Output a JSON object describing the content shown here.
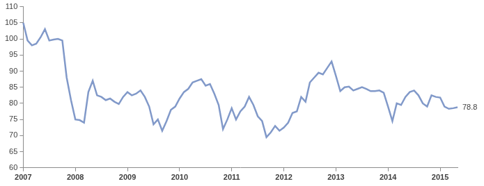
{
  "chart_data": {
    "type": "line",
    "categories": [
      "2007",
      null,
      null,
      null,
      null,
      null,
      null,
      null,
      null,
      null,
      null,
      null,
      "2008",
      null,
      null,
      null,
      null,
      null,
      null,
      null,
      null,
      null,
      null,
      null,
      "2009",
      null,
      null,
      null,
      null,
      null,
      null,
      null,
      null,
      null,
      null,
      null,
      "2010",
      null,
      null,
      null,
      null,
      null,
      null,
      null,
      null,
      null,
      null,
      null,
      "2011",
      null,
      null,
      null,
      null,
      null,
      null,
      null,
      null,
      null,
      null,
      null,
      "2012",
      null,
      null,
      null,
      null,
      null,
      null,
      null,
      null,
      null,
      null,
      null,
      "2013",
      null,
      null,
      null,
      null,
      null,
      null,
      null,
      null,
      null,
      null,
      null,
      "2014",
      null,
      null,
      null,
      null,
      null,
      null,
      null,
      null,
      null,
      null,
      null,
      "2015",
      null,
      null,
      null,
      null
    ],
    "values": [
      105,
      99.5,
      98,
      98.5,
      100.5,
      103,
      99.5,
      99.8,
      100,
      99.5,
      88,
      81,
      75,
      74.8,
      74,
      83.5,
      87,
      82.5,
      82,
      81,
      81.5,
      80.5,
      79.8,
      82,
      83.5,
      82.5,
      83,
      84,
      82,
      79,
      73.5,
      75,
      71.5,
      74.5,
      78,
      79,
      81.5,
      83.5,
      84.5,
      86.5,
      87,
      87.5,
      85.5,
      86,
      83,
      79.5,
      72,
      75,
      78.5,
      75,
      77.5,
      79,
      82,
      79.5,
      76,
      74.5,
      69.5,
      71,
      73,
      71.5,
      72.5,
      74,
      77,
      77.5,
      82,
      80.5,
      86.5,
      88,
      89.5,
      89,
      91,
      93,
      88.5,
      83.8,
      85,
      85.2,
      84,
      84.5,
      85,
      84.5,
      83.8,
      83.8,
      84,
      83.3,
      79,
      74.5,
      80,
      79.5,
      82,
      83.5,
      84,
      82.5,
      80,
      79,
      82.5,
      82,
      81.8,
      79,
      78.3,
      78.5,
      78.8
    ],
    "color": "#8199c9",
    "ylim": [
      60,
      110
    ],
    "yticks": [
      60,
      65,
      70,
      75,
      80,
      85,
      90,
      95,
      100,
      105,
      110
    ],
    "grid": false,
    "legend": false,
    "annotations": [
      {
        "text": "78.8",
        "value": 78.8
      }
    ]
  }
}
